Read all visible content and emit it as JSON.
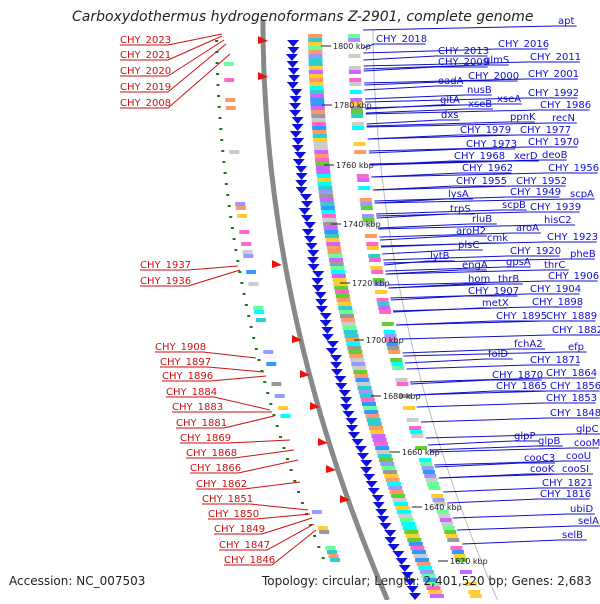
{
  "title": "Carboxydothermus hydrogenoformans Z-2901, complete genome",
  "footer": {
    "accession": "Accession: NC_007503",
    "topology": "Topology: circular; Length: 2,401,520 bp; Genes: 2,683"
  },
  "colors": {
    "gene_label": "#1010cc",
    "rna_label": "#cc1111",
    "backbone": "#888888",
    "tick_dots": "#1a7a1a",
    "arrow_fill": "#1010dd"
  },
  "kbp_labels": [
    "1800 kbp",
    "1780 kbp",
    "1760 kbp",
    "1740 kbp",
    "1720 kbp",
    "1700 kbp",
    "1680 kbp",
    "1660 kbp",
    "1640 kbp",
    "1620 kbp"
  ],
  "gene_labels": [
    "apt",
    "CHY_2018",
    "CHY_2016",
    "CHY_2013",
    "glmS",
    "CHY_2011",
    "CHY_2009",
    "oadA",
    "CHY_2000",
    "CHY_2001",
    "nusB",
    "CHY_1992",
    "gltA",
    "xseB",
    "xseA",
    "CHY_1986",
    "dxs",
    "ppnK",
    "recN",
    "CHY_1979",
    "CHY_1977",
    "CHY_1973",
    "CHY_1970",
    "CHY_1968",
    "xerD",
    "deoB",
    "CHY_1962",
    "CHY_1956",
    "CHY_1955",
    "CHY_1952",
    "lysA",
    "CHY_1949",
    "scpA",
    "trpS",
    "scpB",
    "CHY_1939",
    "rluB",
    "hisC2",
    "aroH2",
    "aroA",
    "cmk",
    "CHY_1923",
    "plsC",
    "CHY_1920",
    "lytB",
    "pheB",
    "engA",
    "gpsA",
    "thrC",
    "hom",
    "thrB",
    "CHY_1906",
    "CHY_1907",
    "CHY_1904",
    "metX",
    "CHY_1898",
    "CHY_1895",
    "CHY_1889",
    "CHY_1882",
    "fchA2",
    "efp",
    "folD",
    "CHY_1871",
    "CHY_1870",
    "CHY_1864",
    "CHY_1865",
    "CHY_1856",
    "CHY_1853",
    "CHY_1848",
    "glpC",
    "glpP",
    "glpB",
    "cooM",
    "cooC3",
    "cooU",
    "cooK",
    "cooSI",
    "CHY_1821",
    "CHY_1816",
    "ubiD",
    "selA",
    "selB"
  ],
  "rna_labels": [
    "CHY_2023",
    "CHY_2021",
    "CHY_2020",
    "CHY_2019",
    "CHY_2008",
    "CHY_1937",
    "CHY_1936",
    "CHY_1908",
    "CHY_1897",
    "CHY_1896",
    "CHY_1884",
    "CHY_1883",
    "CHY_1881",
    "CHY_1869",
    "CHY_1868",
    "CHY_1866",
    "CHY_1862",
    "CHY_1851",
    "CHY_1850",
    "CHY_1849",
    "CHY_1847",
    "CHY_1846"
  ]
}
